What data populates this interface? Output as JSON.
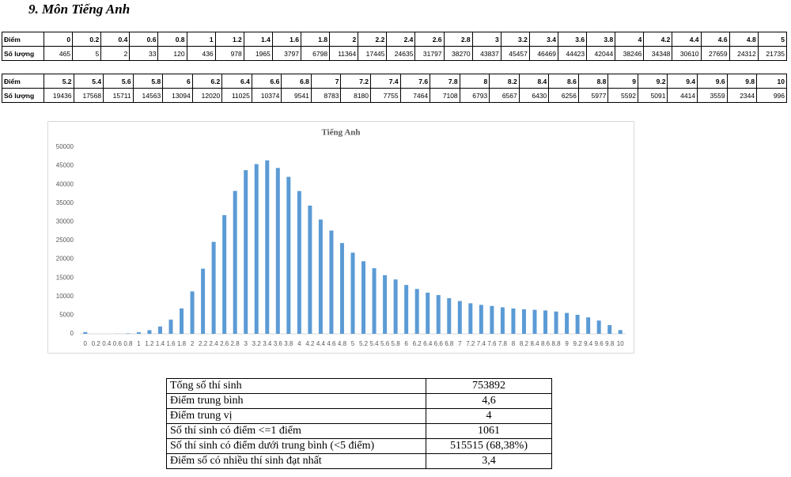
{
  "heading": "9.  Môn Tiếng Anh",
  "table1": {
    "rows": [
      [
        "Điểm",
        "0",
        "0.2",
        "0.4",
        "0.6",
        "0.8",
        "1",
        "1.2",
        "1.4",
        "1.6",
        "1.8",
        "2",
        "2.2",
        "2.4",
        "2.6",
        "2.8",
        "3",
        "3.2",
        "3.4",
        "3.6",
        "3.8",
        "4",
        "4.2",
        "4.4",
        "4.6",
        "4.8",
        "5"
      ],
      [
        "Số lượng",
        465,
        5,
        2,
        33,
        120,
        436,
        978,
        1965,
        3797,
        6798,
        11364,
        17445,
        24635,
        31797,
        38270,
        43837,
        45457,
        46469,
        44423,
        42044,
        38246,
        34348,
        30610,
        27659,
        24312,
        21735
      ]
    ]
  },
  "table2": {
    "rows": [
      [
        "Điểm",
        "5.2",
        "5.4",
        "5.6",
        "5.8",
        "6",
        "6.2",
        "6.4",
        "6.6",
        "6.8",
        "7",
        "7.2",
        "7.4",
        "7.6",
        "7.8",
        "8",
        "8.2",
        "8.4",
        "8.6",
        "8.8",
        "9",
        "9.2",
        "9.4",
        "9.6",
        "9.8",
        "10"
      ],
      [
        "Số lượng",
        19436,
        17568,
        15711,
        14563,
        13094,
        12020,
        11025,
        10374,
        9541,
        8783,
        8180,
        7755,
        7464,
        7108,
        6793,
        6567,
        6430,
        6256,
        5977,
        5592,
        5091,
        4414,
        3559,
        2344,
        996
      ]
    ]
  },
  "chart_data": {
    "type": "bar",
    "title": "Tiếng Anh",
    "color": "#5b9bd5",
    "categories": [
      "0",
      "0.2",
      "0.4",
      "0.6",
      "0.8",
      "1",
      "1.2",
      "1.4",
      "1.6",
      "1.8",
      "2",
      "2.2",
      "2.4",
      "2.6",
      "2.8",
      "3",
      "3.2",
      "3.4",
      "3.6",
      "3.8",
      "4",
      "4.2",
      "4.4",
      "4.6",
      "4.8",
      "5",
      "5.2",
      "5.4",
      "5.6",
      "5.8",
      "6",
      "6.2",
      "6.4",
      "6.6",
      "6.8",
      "7",
      "7.2",
      "7.4",
      "7.6",
      "7.8",
      "8",
      "8.2",
      "8.4",
      "8.6",
      "8.8",
      "9",
      "9.2",
      "9.4",
      "9.6",
      "9.8",
      "10"
    ],
    "values": [
      465,
      5,
      2,
      33,
      120,
      436,
      978,
      1965,
      3797,
      6798,
      11364,
      17445,
      24635,
      31797,
      38270,
      43837,
      45457,
      46469,
      44423,
      42044,
      38246,
      34348,
      30610,
      27659,
      24312,
      21735,
      19436,
      17568,
      15711,
      14563,
      13094,
      12020,
      11025,
      10374,
      9541,
      8783,
      8180,
      7755,
      7464,
      7108,
      6793,
      6567,
      6430,
      6256,
      5977,
      5592,
      5091,
      4414,
      3559,
      2344,
      996
    ],
    "ylim": [
      0,
      50000
    ],
    "yticks": [
      0,
      5000,
      10000,
      15000,
      20000,
      25000,
      30000,
      35000,
      40000,
      45000,
      50000
    ],
    "grid": false
  },
  "summary": {
    "rows": [
      [
        "Tổng số thí sinh",
        "753892"
      ],
      [
        "Điểm trung bình",
        "4,6"
      ],
      [
        "Điểm trung vị",
        "4"
      ],
      [
        "Số thí sinh có điểm <=1 điểm",
        "1061"
      ],
      [
        "Số thí sinh có điểm dưới trung bình (<5 điểm)",
        "515515 (68,38%)"
      ],
      [
        "Điểm số có nhiều thí sinh đạt nhất",
        "3,4"
      ]
    ]
  }
}
